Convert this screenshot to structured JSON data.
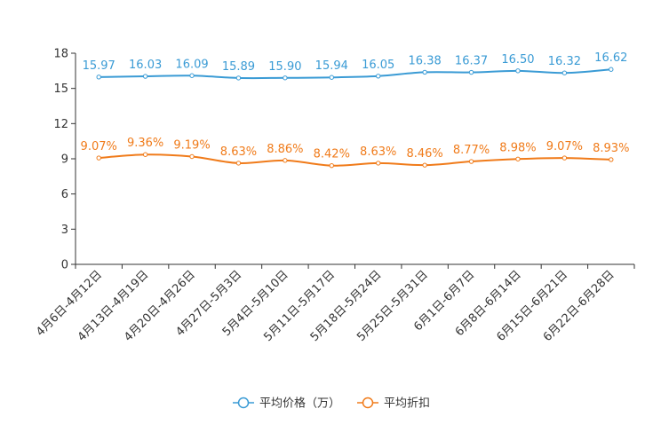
{
  "chart_data": {
    "type": "line",
    "title": "",
    "xlabel": "",
    "ylabel": "",
    "ylim": [
      0,
      18
    ],
    "yticks": [
      0,
      3,
      6,
      9,
      12,
      15,
      18
    ],
    "grid": false,
    "legend_position": "bottom",
    "categories": [
      "4月6日-4月12日",
      "4月13日-4月19日",
      "4月20日-4月26日",
      "4月27日-5月3日",
      "5月4日-5月10日",
      "5月11日-5月17日",
      "5月18日-5月24日",
      "5月25日-5月31日",
      "6月1日-6月7日",
      "6月8日-6月14日",
      "6月15日-6月21日",
      "6月22日-6月28日"
    ],
    "series": [
      {
        "name": "平均价格（万）",
        "color": "#3a9bd5",
        "values": [
          15.97,
          16.03,
          16.09,
          15.89,
          15.9,
          15.94,
          16.05,
          16.38,
          16.37,
          16.5,
          16.32,
          16.62
        ],
        "labels": [
          "15.97",
          "16.03",
          "16.09",
          "15.89",
          "15.90",
          "15.94",
          "16.05",
          "16.38",
          "16.37",
          "16.50",
          "16.32",
          "16.62"
        ]
      },
      {
        "name": "平均折扣",
        "color": "#f07b1a",
        "values": [
          9.07,
          9.36,
          9.19,
          8.63,
          8.86,
          8.42,
          8.63,
          8.46,
          8.77,
          8.98,
          9.07,
          8.93
        ],
        "labels": [
          "9.07%",
          "9.36%",
          "9.19%",
          "8.63%",
          "8.86%",
          "8.42%",
          "8.63%",
          "8.46%",
          "8.77%",
          "8.98%",
          "9.07%",
          "8.93%"
        ]
      }
    ]
  }
}
